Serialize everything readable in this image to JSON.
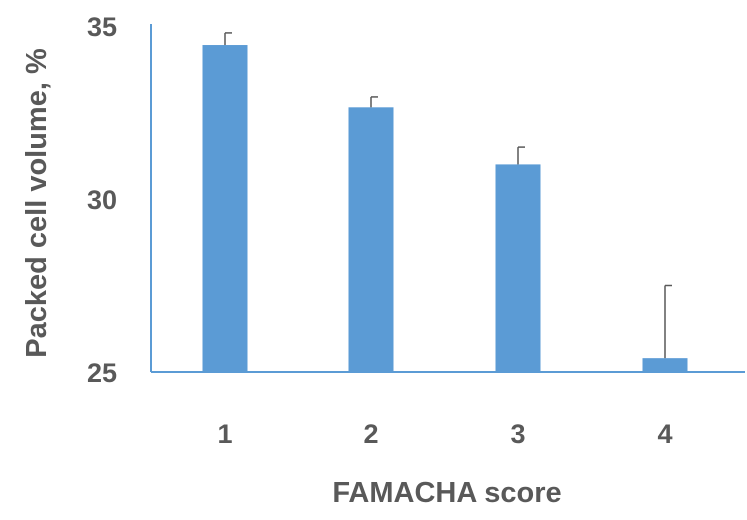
{
  "chart_data": {
    "type": "bar",
    "title": "",
    "xlabel": "FAMACHA score",
    "ylabel": "Packed cell volume, %",
    "categories": [
      "1",
      "2",
      "3",
      "4"
    ],
    "values": [
      34.45,
      32.65,
      31.0,
      25.4
    ],
    "error_upper": [
      34.8,
      32.95,
      31.5,
      27.5
    ],
    "ylim": [
      25,
      35
    ],
    "yticks": [
      "25",
      "30",
      "35"
    ],
    "grid": false,
    "legend": "none",
    "colors": {
      "bar": "#5b9bd5",
      "axis": "#5b9bd5",
      "error_bar": "#595959",
      "text": "#595959"
    }
  }
}
